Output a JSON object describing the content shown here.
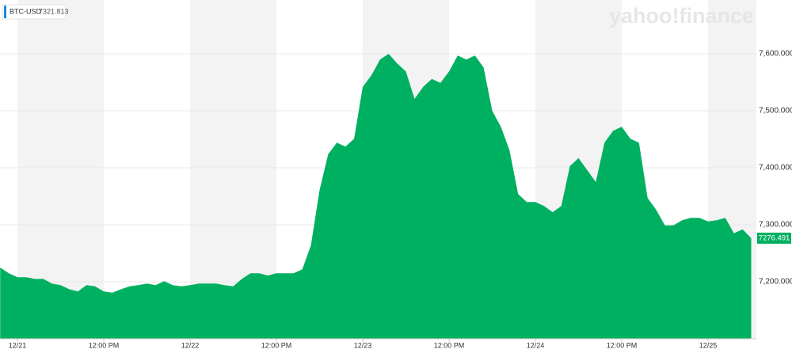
{
  "chart_data": {
    "type": "area",
    "watermark": "yahoo!finance",
    "reference_value": 7321.813,
    "categories": [
      null,
      null,
      "12/21",
      null,
      null,
      null,
      null,
      null,
      null,
      null,
      null,
      null,
      "12:00 PM",
      null,
      null,
      null,
      null,
      null,
      null,
      null,
      null,
      null,
      "12/22",
      null,
      null,
      null,
      null,
      null,
      null,
      null,
      null,
      null,
      "12:00 PM",
      null,
      null,
      null,
      null,
      null,
      null,
      null,
      null,
      null,
      "12/23",
      null,
      null,
      null,
      null,
      null,
      null,
      null,
      null,
      null,
      "12:00 PM",
      null,
      null,
      null,
      null,
      null,
      null,
      null,
      null,
      null,
      "12/24",
      null,
      null,
      null,
      null,
      null,
      null,
      null,
      null,
      null,
      "12:00 PM",
      null,
      null,
      null,
      null,
      null,
      null,
      null,
      null,
      null,
      "12/25",
      null,
      null,
      null,
      null,
      null
    ],
    "series": [
      {
        "name": "BTC-USD",
        "color": "#00b061",
        "legend_color": "#1e88e5",
        "values": [
          7225,
          7215,
          7208,
          7208,
          7205,
          7205,
          7197,
          7194,
          7187,
          7183,
          7194,
          7192,
          7183,
          7181,
          7187,
          7192,
          7194,
          7197,
          7194,
          7201,
          7194,
          7192,
          7194,
          7197,
          7197,
          7197,
          7194,
          7192,
          7205,
          7215,
          7215,
          7211,
          7215,
          7215,
          7215,
          7222,
          7264,
          7361,
          7424,
          7444,
          7437,
          7451,
          7542,
          7562,
          7590,
          7600,
          7583,
          7569,
          7521,
          7542,
          7556,
          7549,
          7569,
          7597,
          7590,
          7597,
          7576,
          7500,
          7472,
          7431,
          7354,
          7340,
          7340,
          7333,
          7322,
          7333,
          7403,
          7417,
          7396,
          7375,
          7444,
          7465,
          7472,
          7451,
          7444,
          7347,
          7326,
          7299,
          7299,
          7308,
          7312,
          7312,
          7306,
          7308,
          7312,
          7285,
          7292,
          7276.491
        ]
      }
    ],
    "ylim": [
      7100,
      7694.4
    ],
    "yticks": [
      {
        "value": 7200,
        "label": "7,200.000"
      },
      {
        "value": 7300,
        "label": "7,300.000"
      },
      {
        "value": 7400,
        "label": "7,400.000"
      },
      {
        "value": 7500,
        "label": "7,500.000"
      },
      {
        "value": 7600,
        "label": "7,600.000"
      }
    ],
    "grid": true
  }
}
